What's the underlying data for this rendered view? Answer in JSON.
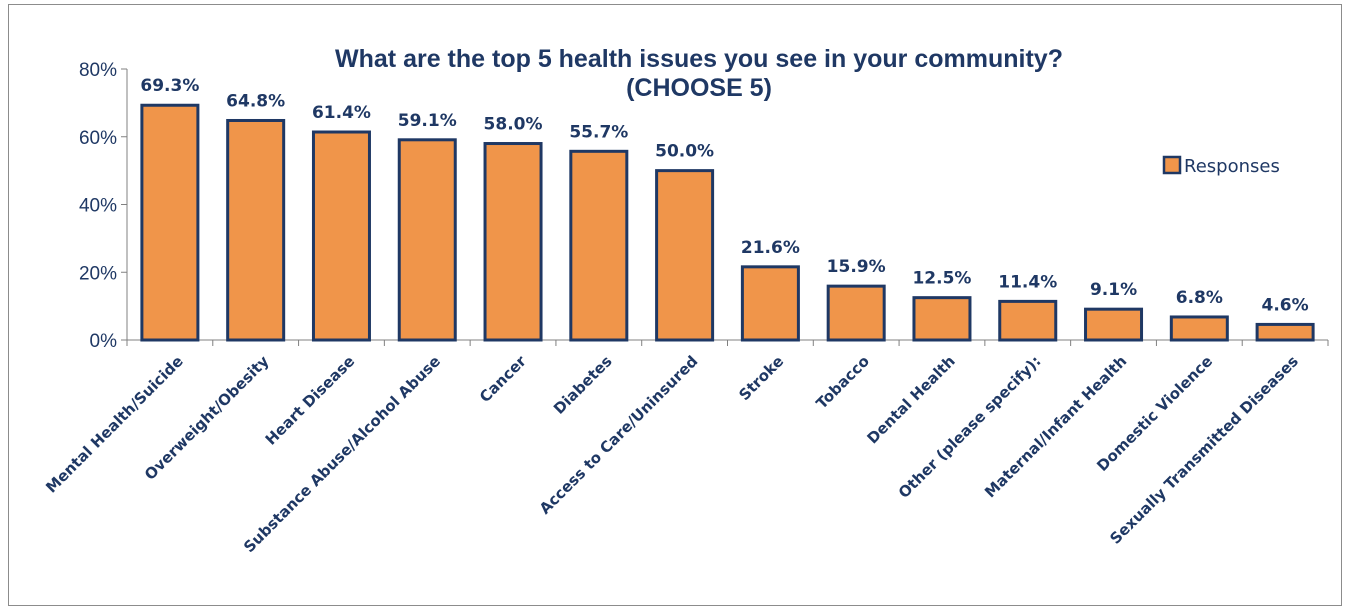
{
  "chart_data": {
    "type": "bar",
    "title": "What are the top 5 health issues you see in your community?",
    "subtitle": "(CHOOSE 5)",
    "xlabel": "",
    "ylabel": "",
    "ylim": [
      0,
      80
    ],
    "yticks": [
      "0%",
      "20%",
      "40%",
      "60%",
      "80%"
    ],
    "ytick_values": [
      0,
      20,
      40,
      60,
      80
    ],
    "grid": false,
    "legend_position": "right",
    "categories": [
      "Mental Health/Suicide",
      "Overweight/Obesity",
      "Heart Disease",
      "Substance Abuse/Alcohol Abuse",
      "Cancer",
      "Diabetes",
      "Access to Care/Uninsured",
      "Stroke",
      "Tobacco",
      "Dental Health",
      "Other (please specify):",
      "Maternal/Infant Health",
      "Domestic Violence",
      "Sexually Transmitted Diseases"
    ],
    "series": [
      {
        "name": "Responses",
        "values": [
          69.3,
          64.8,
          61.4,
          59.1,
          58.0,
          55.7,
          50.0,
          21.6,
          15.9,
          12.5,
          11.4,
          9.1,
          6.8,
          4.6
        ],
        "labels": [
          "69.3%",
          "64.8%",
          "61.4%",
          "59.1%",
          "58.0%",
          "55.7%",
          "50.0%",
          "21.6%",
          "15.9%",
          "12.5%",
          "11.4%",
          "9.1%",
          "6.8%",
          "4.6%"
        ],
        "color": "#f0954a",
        "border_color": "#1f3864"
      }
    ]
  }
}
